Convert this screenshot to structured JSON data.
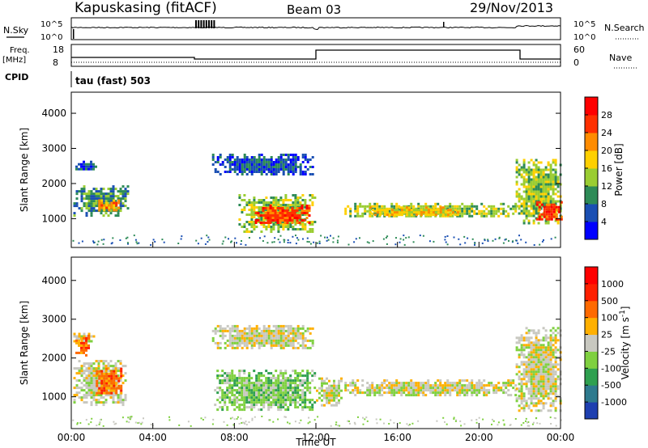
{
  "header": {
    "station": "Kapuskasing (fitACF)",
    "beam": "Beam 03",
    "date": "29/Nov/2013"
  },
  "strips": {
    "nsky_label": "N.Sky",
    "nsky_ticks": [
      "10^5",
      "10^0"
    ],
    "nsearch_label": "N.Search",
    "nsearch_ticks": [
      "10^5",
      "10^0"
    ],
    "freq_label": "Freq.",
    "freq_unit": "[MHz]",
    "freq_ticks": [
      "18",
      "8"
    ],
    "nave_label": "Nave",
    "nave_ticks": [
      "60",
      "0"
    ],
    "cpid_label": "CPID",
    "cpid_value": "tau (fast) 503"
  },
  "chart_data": [
    {
      "type": "heatmap",
      "name": "power",
      "ylabel": "Slant Range [km]",
      "xlabel": "Time UT",
      "xlim": [
        0,
        24
      ],
      "ylim": [
        180,
        4600
      ],
      "yticks": [
        1000,
        2000,
        3000,
        4000
      ],
      "xtick_labels": [
        "00:00",
        "04:00",
        "08:00",
        "12:00",
        "16:00",
        "20:00",
        "00:00"
      ],
      "colorbar": {
        "label": "Power [dB]",
        "ticks": [
          "4",
          "8",
          "12",
          "16",
          "20",
          "24",
          "28"
        ],
        "colors": [
          "#0000ff",
          "#1a4fb3",
          "#2e8b57",
          "#9acd32",
          "#ffd000",
          "#ff8c00",
          "#ff3000",
          "#ff0000"
        ]
      },
      "echo_regions": [
        {
          "t0": 0.2,
          "t1": 1.2,
          "r0": 2400,
          "r1": 2650,
          "level": 1
        },
        {
          "t0": 0.1,
          "t1": 2.8,
          "r0": 1100,
          "r1": 1950,
          "level": 2
        },
        {
          "t0": 1.2,
          "t1": 2.3,
          "r0": 1250,
          "r1": 1550,
          "level": 5
        },
        {
          "t0": 6.9,
          "t1": 11.8,
          "r0": 2250,
          "r1": 2850,
          "level": 1
        },
        {
          "t0": 8.2,
          "t1": 12.0,
          "r0": 650,
          "r1": 1700,
          "level": 3
        },
        {
          "t0": 9.0,
          "t1": 11.7,
          "r0": 850,
          "r1": 1400,
          "level": 6
        },
        {
          "t0": 13.4,
          "t1": 21.8,
          "r0": 1050,
          "r1": 1450,
          "level": 3
        },
        {
          "t0": 14.5,
          "t1": 19.0,
          "r0": 1100,
          "r1": 1350,
          "level": 4
        },
        {
          "t0": 21.8,
          "t1": 24.0,
          "r0": 900,
          "r1": 2700,
          "level": 3
        },
        {
          "t0": 22.8,
          "t1": 24.0,
          "r0": 1000,
          "r1": 1500,
          "level": 6
        }
      ]
    },
    {
      "type": "heatmap",
      "name": "velocity",
      "ylabel": "Slant Range [km]",
      "xlabel": "Time UT",
      "xlim": [
        0,
        24
      ],
      "ylim": [
        180,
        4600
      ],
      "yticks": [
        1000,
        2000,
        3000,
        4000
      ],
      "xtick_labels": [
        "00:00",
        "04:00",
        "08:00",
        "12:00",
        "16:00",
        "20:00",
        "00:00"
      ],
      "colorbar": {
        "label": "Velocity [m s^-1]",
        "ticks": [
          "1000",
          "500",
          "100",
          "25",
          "-25",
          "-100",
          "-500",
          "-1000"
        ],
        "colors": [
          "#1e3fb0",
          "#2e7a8e",
          "#2fa050",
          "#7fd040",
          "#c8c8c0",
          "#ffb000",
          "#ff6a00",
          "#ff2000",
          "#ff0000"
        ]
      },
      "echo_regions": [
        {
          "t0": 0.1,
          "t1": 1.2,
          "r0": 2400,
          "r1": 2650,
          "level": 4
        },
        {
          "t0": 0.2,
          "t1": 0.8,
          "r0": 2050,
          "r1": 2600,
          "level": 6
        },
        {
          "t0": 0.1,
          "t1": 2.7,
          "r0": 800,
          "r1": 1950,
          "level": 4
        },
        {
          "t0": 1.2,
          "t1": 2.5,
          "r0": 1100,
          "r1": 1750,
          "level": 6
        },
        {
          "t0": 6.9,
          "t1": 11.8,
          "r0": 2250,
          "r1": 2850,
          "level": 4
        },
        {
          "t0": 7.0,
          "t1": 12.0,
          "r0": 650,
          "r1": 1700,
          "level": 3
        },
        {
          "t0": 12.0,
          "t1": 13.3,
          "r0": 800,
          "r1": 1500,
          "level": 4
        },
        {
          "t0": 13.4,
          "t1": 21.8,
          "r0": 1050,
          "r1": 1450,
          "level": 4
        },
        {
          "t0": 21.8,
          "t1": 24.0,
          "r0": 650,
          "r1": 2800,
          "level": 4
        }
      ]
    }
  ]
}
